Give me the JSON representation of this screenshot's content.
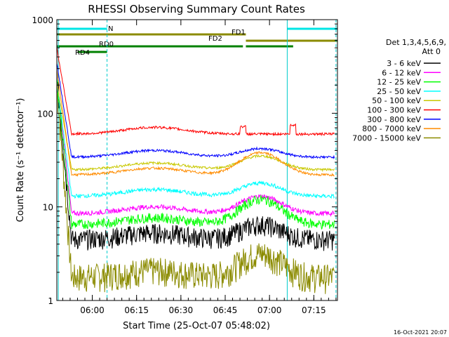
{
  "chart_data": {
    "type": "line",
    "title": "RHESSI Observing Summary Count Rates",
    "xlabel": "Start Time (25-Oct-07 05:48:02)",
    "ylabel": "Count Rate (s⁻¹ detector⁻¹)",
    "yscale": "log",
    "ylim": [
      1,
      1000
    ],
    "xlim_minutes": [
      0,
      95
    ],
    "x_tick_labels": [
      "06:00",
      "06:15",
      "06:30",
      "06:45",
      "07:00",
      "07:15"
    ],
    "y_tick_labels": [
      "1",
      "10",
      "100",
      "1000"
    ],
    "legend_title": "Det 1,3,4,5,6,9,",
    "legend_subtitle": "Att 0",
    "timestamp": "16-Oct-2021 20:07",
    "flag_lines": [
      {
        "name": "N",
        "color": "#00e5e5",
        "segments": [
          [
            0,
            17
          ],
          [
            78,
            95
          ]
        ]
      },
      {
        "name": "FD1",
        "color": "#8b8b00",
        "segments": [
          [
            0,
            64
          ]
        ]
      },
      {
        "name": "FD2",
        "color": "#8b8b00",
        "segments": [
          [
            64,
            95
          ]
        ]
      },
      {
        "name": "RD0",
        "color": "#008000",
        "segments": [
          [
            0,
            63
          ],
          [
            64,
            80
          ]
        ]
      },
      {
        "name": "RD4",
        "color": "#008000",
        "segments": [
          [
            7,
            17
          ]
        ]
      }
    ],
    "shaded_boundaries_minutes": [
      0.5,
      17,
      78,
      94.5
    ],
    "series": [
      {
        "name": "3 - 6 keV",
        "color": "#000000",
        "start": 250,
        "level": 4.5,
        "noise": 0.25,
        "peak": 6.5
      },
      {
        "name": "6 - 12 keV",
        "color": "#ff00ff",
        "start": 240,
        "level": 8.5,
        "noise": 0.06,
        "peak": 13
      },
      {
        "name": "12 - 25 keV",
        "color": "#00ff00",
        "start": 230,
        "level": 6.5,
        "noise": 0.12,
        "peak": 12
      },
      {
        "name": "25 - 50 keV",
        "color": "#00ffff",
        "start": 220,
        "level": 13,
        "noise": 0.05,
        "peak": 18
      },
      {
        "name": "50 - 100 keV",
        "color": "#c8c800",
        "start": 210,
        "level": 25,
        "noise": 0.03,
        "peak": 35
      },
      {
        "name": "100 - 300 keV",
        "color": "#ff0000",
        "start": 500,
        "level": 60,
        "noise": 0.03,
        "peak": 60
      },
      {
        "name": "300 - 800 keV",
        "color": "#0000ff",
        "start": 350,
        "level": 34,
        "noise": 0.03,
        "peak": 42
      },
      {
        "name": "800 - 7000 keV",
        "color": "#ff8c00",
        "start": 300,
        "level": 22,
        "noise": 0.03,
        "peak": 38
      },
      {
        "name": "7000 - 15000 keV",
        "color": "#8b8b00",
        "start": 200,
        "level": 1.8,
        "noise": 0.35,
        "peak": 3.2
      }
    ]
  }
}
